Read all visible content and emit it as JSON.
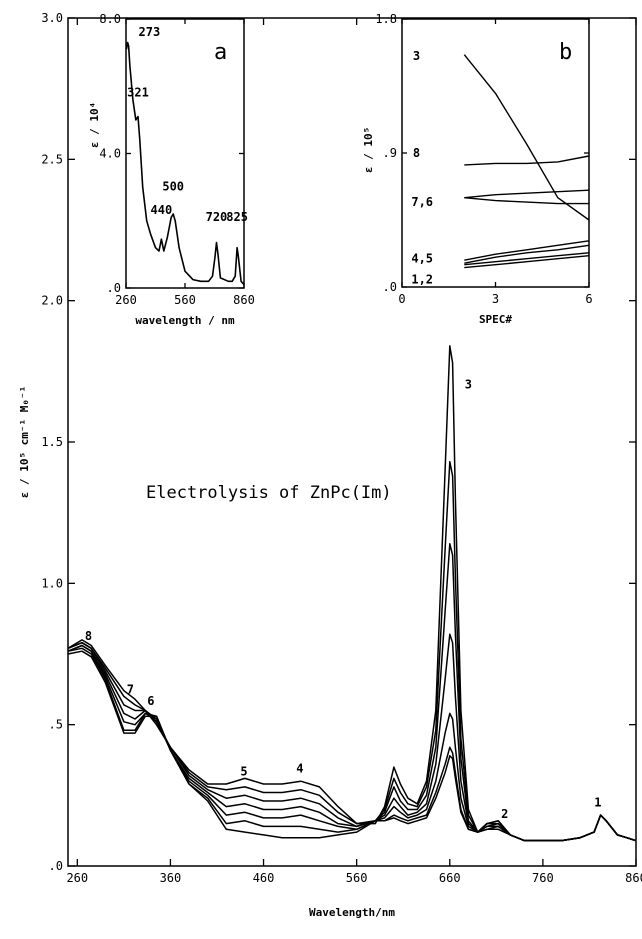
{
  "chart_data": [
    {
      "id": "main",
      "type": "line",
      "title": "Electrolysis of ZnPc(Im)",
      "xlabel": "Wavelength/nm",
      "ylabel": "ε / 10⁵ cm⁻¹ M₀⁻¹",
      "xlim": [
        250,
        860
      ],
      "ylim": [
        0,
        3.0
      ],
      "x_ticks": [
        260,
        360,
        460,
        560,
        660,
        760,
        860
      ],
      "x_tick_labels": [
        "260",
        "360",
        "460",
        "560",
        "660",
        "760",
        "860"
      ],
      "y_ticks": [
        0,
        0.5,
        1.0,
        1.5,
        2.0,
        2.5,
        3.0
      ],
      "y_tick_labels": [
        ".0",
        ".5",
        "1.0",
        "1.5",
        "2.0",
        "2.5",
        "3.0"
      ],
      "series_note": "spectra recorded during electrolysis; peak 3 decreases from top curve to bottom curve",
      "series": [
        {
          "x": [
            250,
            265,
            275,
            290,
            310,
            322,
            333,
            345,
            360,
            380,
            400,
            420,
            440,
            460,
            480,
            500,
            520,
            540,
            560,
            580,
            590,
            600,
            607,
            615,
            625,
            635,
            645,
            655,
            660,
            663,
            666,
            672,
            680,
            690,
            700,
            712,
            725,
            740,
            760,
            780,
            800,
            815,
            822,
            828,
            840,
            850,
            860
          ],
          "y": [
            0.77,
            0.8,
            0.78,
            0.71,
            0.62,
            0.59,
            0.55,
            0.5,
            0.42,
            0.34,
            0.29,
            0.29,
            0.31,
            0.29,
            0.29,
            0.3,
            0.28,
            0.21,
            0.15,
            0.15,
            0.21,
            0.35,
            0.29,
            0.24,
            0.22,
            0.3,
            0.55,
            1.4,
            1.84,
            1.78,
            1.3,
            0.55,
            0.2,
            0.12,
            0.13,
            0.13,
            0.11,
            0.09,
            0.09,
            0.09,
            0.1,
            0.12,
            0.18,
            0.16,
            0.11,
            0.1,
            0.09
          ]
        },
        {
          "x": [
            250,
            265,
            275,
            290,
            310,
            322,
            333,
            345,
            360,
            380,
            400,
            420,
            440,
            460,
            480,
            500,
            520,
            540,
            560,
            580,
            590,
            600,
            607,
            615,
            625,
            635,
            645,
            655,
            660,
            663,
            666,
            672,
            680,
            690,
            700,
            712,
            725,
            740,
            760,
            780,
            800,
            815,
            822,
            828,
            840,
            850,
            860
          ],
          "y": [
            0.77,
            0.79,
            0.77,
            0.7,
            0.6,
            0.57,
            0.55,
            0.51,
            0.42,
            0.33,
            0.28,
            0.27,
            0.28,
            0.26,
            0.26,
            0.27,
            0.25,
            0.19,
            0.15,
            0.16,
            0.2,
            0.31,
            0.26,
            0.22,
            0.21,
            0.28,
            0.48,
            1.12,
            1.43,
            1.38,
            1.02,
            0.45,
            0.18,
            0.12,
            0.13,
            0.14,
            0.11,
            0.09,
            0.09,
            0.09,
            0.1,
            0.12,
            0.18,
            0.16,
            0.11,
            0.1,
            0.09
          ]
        },
        {
          "x": [
            250,
            265,
            275,
            290,
            310,
            322,
            333,
            345,
            360,
            380,
            400,
            420,
            440,
            460,
            480,
            500,
            520,
            540,
            560,
            580,
            590,
            600,
            607,
            615,
            625,
            635,
            645,
            655,
            660,
            663,
            666,
            672,
            680,
            690,
            700,
            712,
            725,
            740,
            760,
            780,
            800,
            815,
            822,
            828,
            840,
            850,
            860
          ],
          "y": [
            0.77,
            0.79,
            0.77,
            0.69,
            0.57,
            0.55,
            0.55,
            0.51,
            0.42,
            0.32,
            0.27,
            0.24,
            0.25,
            0.23,
            0.23,
            0.24,
            0.22,
            0.17,
            0.14,
            0.16,
            0.19,
            0.28,
            0.23,
            0.2,
            0.2,
            0.25,
            0.42,
            0.9,
            1.14,
            1.1,
            0.82,
            0.38,
            0.16,
            0.12,
            0.14,
            0.14,
            0.11,
            0.09,
            0.09,
            0.09,
            0.1,
            0.12,
            0.18,
            0.16,
            0.11,
            0.1,
            0.09
          ]
        },
        {
          "x": [
            250,
            265,
            275,
            290,
            310,
            322,
            333,
            345,
            360,
            380,
            400,
            420,
            440,
            460,
            480,
            500,
            520,
            540,
            560,
            580,
            590,
            600,
            607,
            615,
            625,
            635,
            645,
            655,
            660,
            663,
            666,
            672,
            680,
            690,
            700,
            712,
            725,
            740,
            760,
            780,
            800,
            815,
            822,
            828,
            840,
            850,
            860
          ],
          "y": [
            0.76,
            0.78,
            0.76,
            0.68,
            0.54,
            0.52,
            0.55,
            0.52,
            0.41,
            0.31,
            0.26,
            0.21,
            0.22,
            0.2,
            0.2,
            0.21,
            0.19,
            0.15,
            0.14,
            0.16,
            0.18,
            0.24,
            0.21,
            0.18,
            0.19,
            0.22,
            0.36,
            0.66,
            0.82,
            0.79,
            0.6,
            0.3,
            0.15,
            0.12,
            0.14,
            0.15,
            0.11,
            0.09,
            0.09,
            0.09,
            0.1,
            0.12,
            0.18,
            0.16,
            0.11,
            0.1,
            0.09
          ]
        },
        {
          "x": [
            250,
            265,
            275,
            290,
            310,
            322,
            333,
            345,
            360,
            380,
            400,
            420,
            440,
            460,
            480,
            500,
            520,
            540,
            560,
            580,
            590,
            600,
            607,
            615,
            625,
            635,
            645,
            655,
            660,
            663,
            666,
            672,
            680,
            690,
            700,
            712,
            725,
            740,
            760,
            780,
            800,
            815,
            822,
            828,
            840,
            850,
            860
          ],
          "y": [
            0.76,
            0.78,
            0.76,
            0.67,
            0.51,
            0.5,
            0.54,
            0.52,
            0.41,
            0.3,
            0.25,
            0.18,
            0.19,
            0.17,
            0.17,
            0.18,
            0.16,
            0.14,
            0.13,
            0.16,
            0.17,
            0.21,
            0.19,
            0.17,
            0.18,
            0.2,
            0.3,
            0.47,
            0.54,
            0.52,
            0.42,
            0.24,
            0.14,
            0.12,
            0.15,
            0.15,
            0.11,
            0.09,
            0.09,
            0.09,
            0.1,
            0.12,
            0.18,
            0.16,
            0.11,
            0.1,
            0.09
          ]
        },
        {
          "x": [
            250,
            265,
            275,
            290,
            310,
            322,
            333,
            345,
            360,
            380,
            400,
            420,
            440,
            460,
            480,
            500,
            520,
            540,
            560,
            580,
            590,
            600,
            607,
            615,
            625,
            635,
            645,
            655,
            660,
            663,
            666,
            672,
            680,
            690,
            700,
            712,
            725,
            740,
            760,
            780,
            800,
            815,
            822,
            828,
            840,
            850,
            860
          ],
          "y": [
            0.76,
            0.77,
            0.75,
            0.66,
            0.48,
            0.48,
            0.54,
            0.53,
            0.41,
            0.29,
            0.24,
            0.15,
            0.16,
            0.14,
            0.14,
            0.14,
            0.13,
            0.12,
            0.13,
            0.16,
            0.16,
            0.18,
            0.17,
            0.16,
            0.17,
            0.18,
            0.26,
            0.36,
            0.42,
            0.4,
            0.33,
            0.2,
            0.13,
            0.12,
            0.15,
            0.16,
            0.11,
            0.09,
            0.09,
            0.09,
            0.1,
            0.12,
            0.18,
            0.16,
            0.11,
            0.1,
            0.09
          ]
        },
        {
          "x": [
            250,
            265,
            275,
            290,
            310,
            322,
            333,
            345,
            360,
            380,
            400,
            420,
            440,
            460,
            480,
            500,
            520,
            540,
            560,
            580,
            590,
            600,
            607,
            615,
            625,
            635,
            645,
            655,
            660,
            663,
            666,
            672,
            680,
            690,
            700,
            712,
            725,
            740,
            760,
            780,
            800,
            815,
            822,
            828,
            840,
            850,
            860
          ],
          "y": [
            0.75,
            0.76,
            0.74,
            0.65,
            0.47,
            0.47,
            0.53,
            0.53,
            0.41,
            0.29,
            0.23,
            0.13,
            0.12,
            0.11,
            0.1,
            0.1,
            0.1,
            0.11,
            0.12,
            0.16,
            0.16,
            0.17,
            0.16,
            0.15,
            0.16,
            0.17,
            0.24,
            0.33,
            0.39,
            0.38,
            0.31,
            0.19,
            0.13,
            0.12,
            0.15,
            0.16,
            0.11,
            0.09,
            0.09,
            0.09,
            0.1,
            0.12,
            0.18,
            0.16,
            0.11,
            0.1,
            0.09
          ]
        }
      ],
      "peak_labels": [
        {
          "text": "8",
          "x": 272,
          "y": 0.8
        },
        {
          "text": "7",
          "x": 317,
          "y": 0.61
        },
        {
          "text": "6",
          "x": 339,
          "y": 0.57
        },
        {
          "text": "5",
          "x": 439,
          "y": 0.32
        },
        {
          "text": "4",
          "x": 499,
          "y": 0.33
        },
        {
          "text": "3",
          "x": 680,
          "y": 1.69
        },
        {
          "text": "2",
          "x": 719,
          "y": 0.17
        },
        {
          "text": "1",
          "x": 819,
          "y": 0.21
        }
      ]
    },
    {
      "id": "a",
      "panel_label": "a",
      "type": "line",
      "xlabel": "wavelength / nm",
      "ylabel": "ε / 10⁴",
      "xlim": [
        260,
        860
      ],
      "ylim": [
        0,
        8.0
      ],
      "x_ticks": [
        260,
        560,
        860
      ],
      "x_tick_labels": [
        "260",
        "560",
        "860"
      ],
      "y_ticks": [
        0,
        4.0,
        8.0
      ],
      "y_tick_labels": [
        ".0",
        "4.0",
        "8.0"
      ],
      "series": [
        {
          "x": [
            262,
            268,
            273,
            280,
            295,
            310,
            321,
            330,
            345,
            365,
            385,
            410,
            428,
            440,
            452,
            470,
            490,
            500,
            510,
            530,
            560,
            600,
            640,
            680,
            700,
            712,
            720,
            728,
            740,
            780,
            800,
            815,
            825,
            830,
            845,
            860
          ],
          "y": [
            7.1,
            7.3,
            7.2,
            6.6,
            5.6,
            5.0,
            5.1,
            4.4,
            3.0,
            2.0,
            1.6,
            1.2,
            1.1,
            1.45,
            1.1,
            1.5,
            2.1,
            2.2,
            2.0,
            1.2,
            0.5,
            0.25,
            0.2,
            0.2,
            0.35,
            0.9,
            1.35,
            1.0,
            0.3,
            0.2,
            0.2,
            0.35,
            1.2,
            1.0,
            0.2,
            0.1
          ]
        }
      ],
      "peak_labels": [
        {
          "text": "273",
          "x": 273,
          "y": 7.5
        },
        {
          "text": "321",
          "x": 321,
          "y": 5.7
        },
        {
          "text": "440",
          "x": 440,
          "y": 2.2
        },
        {
          "text": "500",
          "x": 500,
          "y": 2.9
        },
        {
          "text": "720",
          "x": 720,
          "y": 2.0
        },
        {
          "text": "825",
          "x": 825,
          "y": 2.0
        }
      ]
    },
    {
      "id": "b",
      "panel_label": "b",
      "type": "line",
      "xlabel": "SPEC#",
      "ylabel": "ε / 10⁵",
      "xlim": [
        0,
        6
      ],
      "ylim": [
        0,
        1.8
      ],
      "x_ticks": [
        0,
        3,
        6
      ],
      "x_tick_labels": [
        "0",
        "3",
        "6"
      ],
      "y_ticks": [
        0,
        0.9,
        1.8
      ],
      "y_tick_labels": [
        ".0",
        ".9",
        "1.8"
      ],
      "series": [
        {
          "name": "3",
          "x": [
            2,
            3,
            4,
            5,
            6
          ],
          "y": [
            1.56,
            1.3,
            0.96,
            0.6,
            0.45
          ]
        },
        {
          "name": "8",
          "x": [
            2,
            3,
            4,
            5,
            6
          ],
          "y": [
            0.82,
            0.83,
            0.83,
            0.84,
            0.88
          ]
        },
        {
          "name": "7",
          "x": [
            2,
            3,
            4,
            5,
            6
          ],
          "y": [
            0.6,
            0.62,
            0.63,
            0.64,
            0.65
          ]
        },
        {
          "name": "6",
          "x": [
            2,
            3,
            4,
            5,
            6
          ],
          "y": [
            0.6,
            0.58,
            0.57,
            0.56,
            0.56
          ]
        },
        {
          "name": "4",
          "x": [
            2,
            3,
            4,
            5,
            6
          ],
          "y": [
            0.18,
            0.22,
            0.25,
            0.28,
            0.31
          ]
        },
        {
          "name": "5",
          "x": [
            2,
            3,
            4,
            5,
            6
          ],
          "y": [
            0.16,
            0.2,
            0.23,
            0.25,
            0.28
          ]
        },
        {
          "name": "1",
          "x": [
            2,
            3,
            4,
            5,
            6
          ],
          "y": [
            0.15,
            0.17,
            0.19,
            0.21,
            0.23
          ]
        },
        {
          "name": "2",
          "x": [
            2,
            3,
            4,
            5,
            6
          ],
          "y": [
            0.13,
            0.15,
            0.17,
            0.19,
            0.21
          ]
        }
      ],
      "series_labels": [
        {
          "text": "3",
          "x": 0.35,
          "y": 1.55
        },
        {
          "text": "8",
          "x": 0.35,
          "y": 0.9
        },
        {
          "text": "7,6",
          "x": 0.3,
          "y": 0.57
        },
        {
          "text": "4,5",
          "x": 0.3,
          "y": 0.19
        },
        {
          "text": "1,2",
          "x": 0.3,
          "y": 0.05
        }
      ]
    }
  ]
}
